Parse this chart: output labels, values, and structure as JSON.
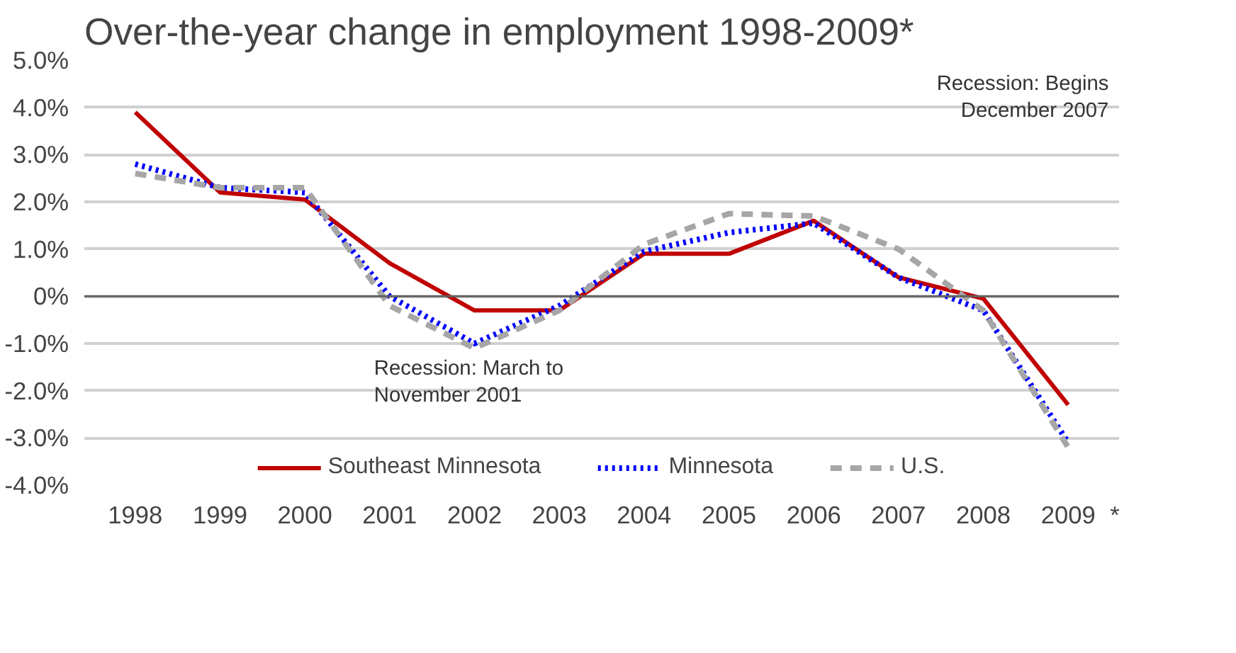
{
  "chart_data": {
    "type": "line",
    "title": "Over-the-year change in employment 1998-2009*",
    "categories": [
      "1998",
      "1999",
      "2000",
      "2001",
      "2002",
      "2003",
      "2004",
      "2005",
      "2006",
      "2007",
      "2008",
      "2009"
    ],
    "series": [
      {
        "name": "Southeast Minnesota",
        "color": "#c00000",
        "line_style": "solid",
        "values": [
          3.9,
          2.2,
          2.05,
          0.7,
          -0.3,
          -0.3,
          0.9,
          0.9,
          1.6,
          0.4,
          -0.05,
          -2.3
        ]
      },
      {
        "name": "Minnesota",
        "color": "#0000ff",
        "line_style": "dotted",
        "values": [
          2.8,
          2.3,
          2.2,
          0.0,
          -1.0,
          -0.2,
          0.95,
          1.35,
          1.55,
          0.4,
          -0.3,
          -3.1
        ]
      },
      {
        "name": "U.S.",
        "color": "#a6a6a6",
        "line_style": "dashed",
        "values": [
          2.6,
          2.3,
          2.3,
          -0.2,
          -1.1,
          -0.3,
          1.1,
          1.75,
          1.7,
          1.0,
          -0.3,
          -3.2
        ]
      }
    ],
    "ylim": [
      -4.0,
      5.0
    ],
    "yticks": [
      {
        "value": 5,
        "label": "5.0%"
      },
      {
        "value": 4,
        "label": "4.0%"
      },
      {
        "value": 3,
        "label": "3.0%"
      },
      {
        "value": 2,
        "label": "2.0%"
      },
      {
        "value": 1,
        "label": "1.0%"
      },
      {
        "value": 0,
        "label": "0%"
      },
      {
        "value": -1,
        "label": "-1.0%"
      },
      {
        "value": -2,
        "label": "-2.0%"
      },
      {
        "value": -3,
        "label": "-3.0%"
      },
      {
        "value": -4,
        "label": "-4.0%"
      }
    ],
    "grid": "y",
    "legend": "bottom",
    "marker": "none",
    "ref_lines": [
      {
        "axis": "y",
        "value": 0,
        "color": "#606060"
      }
    ],
    "annotations": [
      "Recession: March to\nNovember 2001",
      "Recession: Begins\nDecember 2007",
      "*"
    ]
  }
}
